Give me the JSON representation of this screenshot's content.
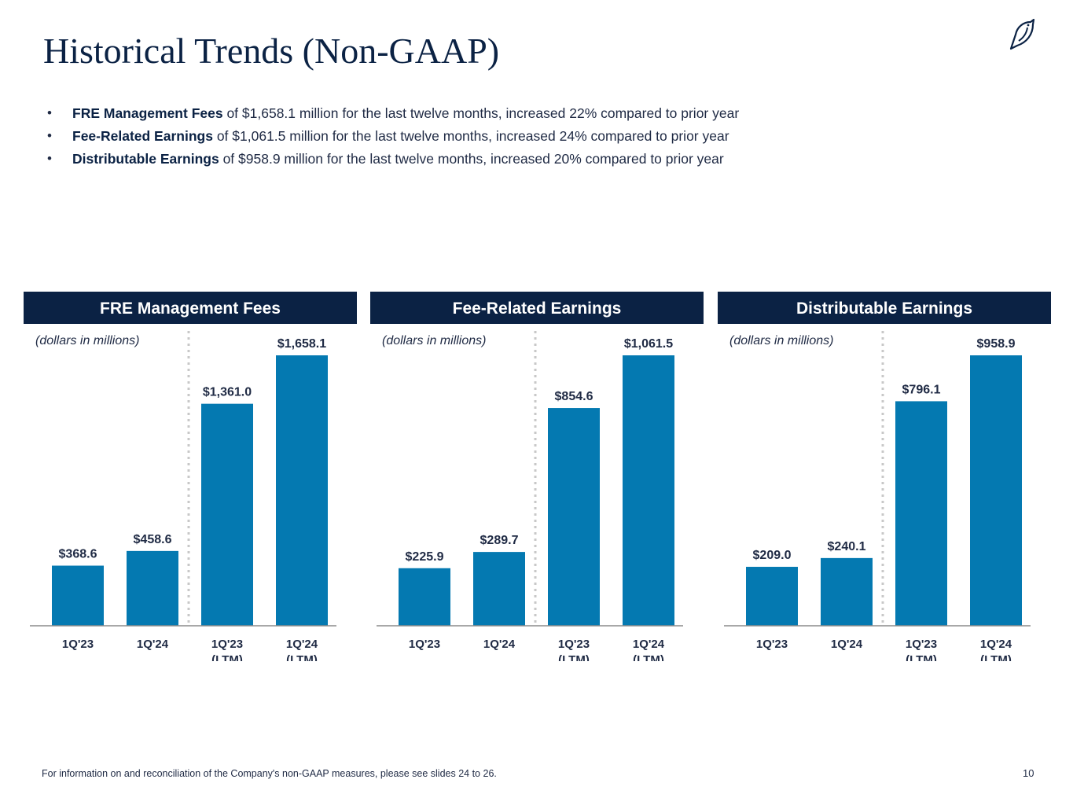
{
  "page": {
    "title": "Historical Trends (Non-GAAP)",
    "logo_icon": "bird-icon",
    "bullets": [
      {
        "bold": "FRE Management Fees",
        "text": " of $1,658.1 million for the last twelve months, increased 22% compared to prior year"
      },
      {
        "bold": "Fee-Related Earnings",
        "text": " of $1,061.5 million for the last twelve months, increased 24% compared to prior year"
      },
      {
        "bold": "Distributable Earnings",
        "text": " of $958.9 million for the last twelve months, increased 20% compared to prior year"
      }
    ],
    "footnote": "For information on and reconciliation of the Company's non-GAAP measures, please see slides 24 to 26.",
    "page_number": "10"
  },
  "colors": {
    "bar": "#0479b1",
    "header": "#0b2244",
    "label": "#1f2a44",
    "divider": "#c8c8c8"
  },
  "chart_data": [
    {
      "type": "bar",
      "title": "FRE Management Fees",
      "subtitle": "(dollars in millions)",
      "categories": [
        [
          "1Q'23"
        ],
        [
          "1Q'24"
        ],
        [
          "1Q'23",
          "(LTM)"
        ],
        [
          "1Q'24",
          "(LTM)"
        ]
      ],
      "values": [
        368.6,
        458.6,
        1361.0,
        1658.1
      ],
      "value_labels": [
        "$368.6",
        "$458.6",
        "$1,361.0",
        "$1,658.1"
      ],
      "ylim": [
        0,
        1658.1
      ],
      "grid": false
    },
    {
      "type": "bar",
      "title": "Fee-Related Earnings",
      "subtitle": "(dollars in millions)",
      "categories": [
        [
          "1Q'23"
        ],
        [
          "1Q'24"
        ],
        [
          "1Q'23",
          "(LTM)"
        ],
        [
          "1Q'24",
          "(LTM)"
        ]
      ],
      "values": [
        225.9,
        289.7,
        854.6,
        1061.5
      ],
      "value_labels": [
        "$225.9",
        "$289.7",
        "$854.6",
        "$1,061.5"
      ],
      "ylim": [
        0,
        1061.5
      ],
      "grid": false
    },
    {
      "type": "bar",
      "title": "Distributable Earnings",
      "subtitle": "(dollars in millions)",
      "categories": [
        [
          "1Q'23"
        ],
        [
          "1Q'24"
        ],
        [
          "1Q'23",
          "(LTM)"
        ],
        [
          "1Q'24",
          "(LTM)"
        ]
      ],
      "values": [
        209.0,
        240.1,
        796.1,
        958.9
      ],
      "value_labels": [
        "$209.0",
        "$240.1",
        "$796.1",
        "$958.9"
      ],
      "ylim": [
        0,
        958.9
      ],
      "grid": false
    }
  ]
}
